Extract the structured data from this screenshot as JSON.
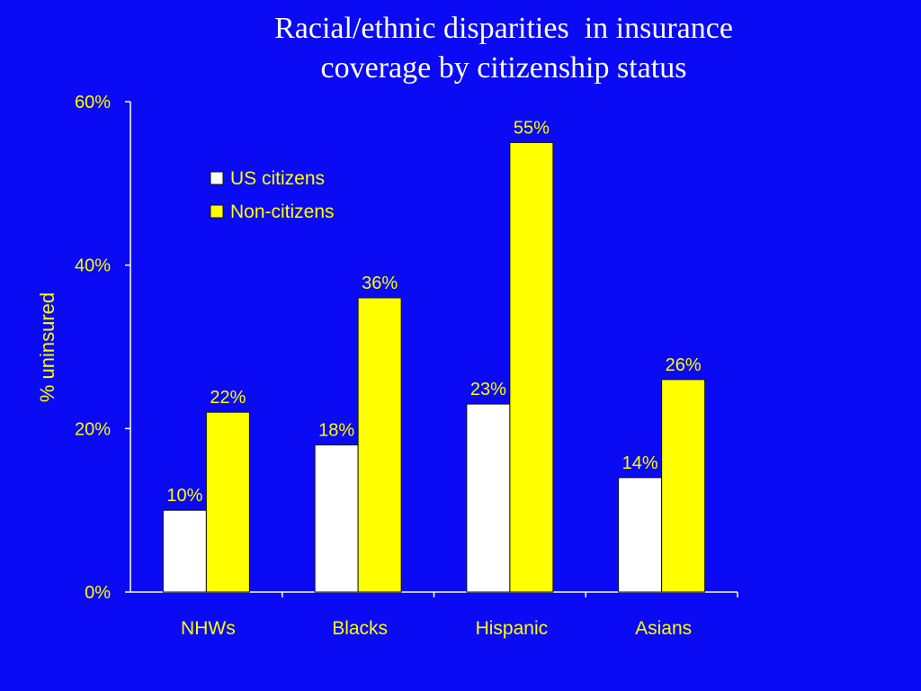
{
  "slide": {
    "title_line1": "Racial/ethnic disparities  in insurance",
    "title_line2": "coverage by citizenship status"
  },
  "colors": {
    "background": "#0a0af5",
    "text": "#ffff00",
    "us_citizens": "#ffffff",
    "non_citizens": "#ffff00",
    "axis": "#ffffff"
  },
  "chart_data": {
    "type": "bar",
    "categories": [
      "NHWs",
      "Blacks",
      "Hispanic",
      "Asians"
    ],
    "series": [
      {
        "name": "US citizens",
        "values": [
          10,
          18,
          23,
          14
        ],
        "labels": [
          "10%",
          "18%",
          "23%",
          "14%"
        ],
        "color": "#ffffff"
      },
      {
        "name": "Non-citizens",
        "values": [
          22,
          36,
          55,
          26
        ],
        "labels": [
          "22%",
          "36%",
          "55%",
          "26%"
        ],
        "color": "#ffff00"
      }
    ],
    "ylabel": "% uninsured",
    "xlabel": "",
    "ylim": [
      0,
      60
    ],
    "yticks": [
      0,
      20,
      40,
      60
    ],
    "ytick_labels": [
      "0%",
      "20%",
      "40%",
      "60%"
    ],
    "legend_placement": "top-left",
    "grid": false
  }
}
